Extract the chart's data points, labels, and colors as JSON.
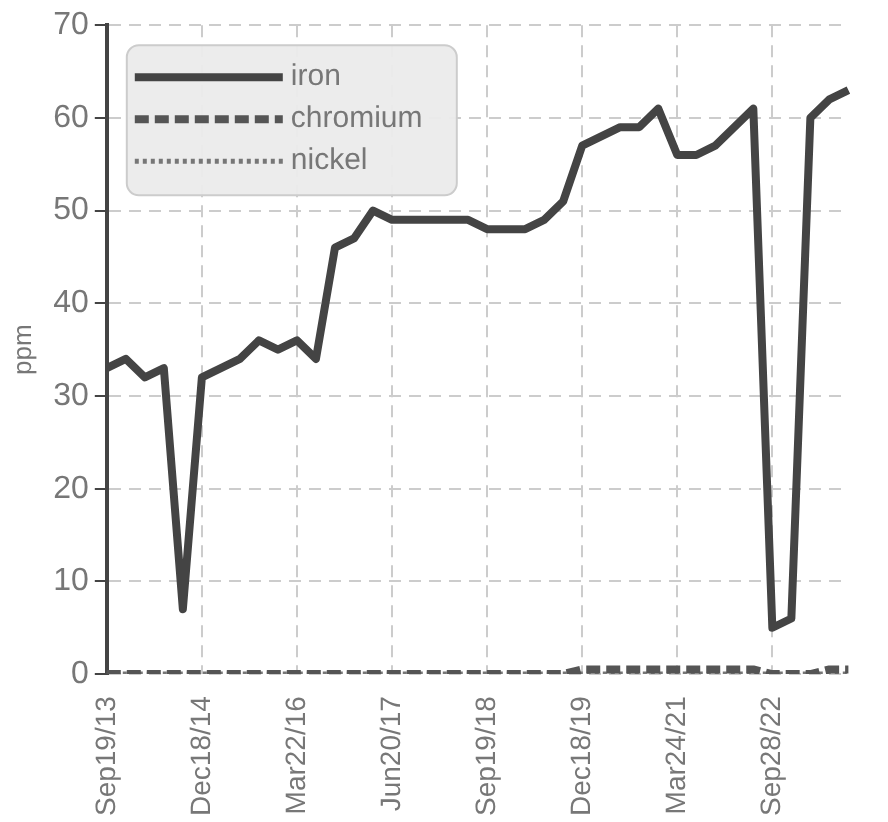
{
  "chart_data": {
    "type": "line",
    "ylabel": "ppm",
    "categories": [
      "Sep19/13",
      null,
      null,
      null,
      null,
      "Dec18/14",
      null,
      null,
      null,
      null,
      "Mar22/16",
      null,
      null,
      null,
      null,
      "Jun20/17",
      null,
      null,
      null,
      null,
      "Sep19/18",
      null,
      null,
      null,
      null,
      "Dec18/19",
      null,
      null,
      null,
      null,
      "Mar24/21",
      null,
      null,
      null,
      null,
      "Sep28/22",
      null,
      null,
      null,
      null
    ],
    "series": [
      {
        "name": "iron",
        "color": "#444444",
        "line_style": "solid",
        "values": [
          33,
          34,
          32,
          33,
          7,
          32,
          33,
          34,
          36,
          35,
          36,
          34,
          46,
          47,
          50,
          49,
          49,
          49,
          49,
          49,
          48,
          48,
          48,
          49,
          51,
          57,
          58,
          59,
          59,
          61,
          56,
          56,
          57,
          59,
          61,
          5,
          6,
          60,
          62,
          63
        ]
      },
      {
        "name": "chromium",
        "color": "#555555",
        "line_style": "dashed",
        "values": [
          0,
          0,
          0,
          0,
          0,
          0,
          0,
          0,
          0,
          0,
          0,
          0,
          0,
          0,
          0,
          0,
          0,
          0,
          0,
          0,
          0,
          0,
          0,
          0,
          0,
          0.5,
          0.5,
          0.5,
          0.5,
          0.5,
          0.5,
          0.5,
          0.5,
          0.5,
          0.5,
          0,
          0,
          0,
          0.5,
          0.5
        ]
      },
      {
        "name": "nickel",
        "color": "#777777",
        "line_style": "dotted",
        "values": [
          0,
          0,
          0,
          0,
          0,
          0,
          0,
          0,
          0,
          0,
          0,
          0,
          0,
          0,
          0,
          0,
          0,
          0,
          0,
          0,
          0,
          0,
          0,
          0,
          0,
          0,
          0,
          0,
          0,
          0,
          0,
          0,
          0,
          0,
          0,
          0,
          0,
          0,
          0,
          0
        ]
      }
    ],
    "ylim": [
      0,
      70
    ],
    "yticks": [
      0,
      10,
      20,
      30,
      40,
      50,
      60,
      70
    ],
    "grid": true,
    "legend": "top left",
    "marker": "none"
  }
}
